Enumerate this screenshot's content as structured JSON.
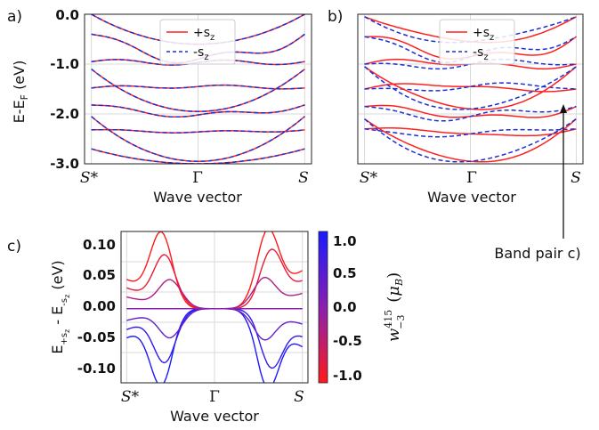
{
  "panel_labels": {
    "a": "a)",
    "b": "b)",
    "c": "c)"
  },
  "annotation": "Band pair c)",
  "chart_data": [
    {
      "id": "a",
      "type": "line",
      "xlabel": "Wave vector",
      "ylabel": "E-E_F (eV)",
      "ylim": [
        -3.0,
        0.0
      ],
      "xticks": [
        "S*",
        "Γ",
        "S"
      ],
      "yticks": [
        "0.0",
        "-1.0",
        "-2.0",
        "-3.0"
      ],
      "grid": true,
      "legend": {
        "placement": "top-center",
        "entries": [
          "+s_z",
          "-s_z"
        ]
      },
      "series": [
        {
          "name": "+s_z",
          "color": "#ff2020"
        },
        {
          "name": "-s_z",
          "color": "#1a2fd6"
        }
      ],
      "bands": [
        {
          "edge": 0.0,
          "center": -0.6,
          "wiggle": 0.0
        },
        {
          "edge": -0.4,
          "center": -0.9,
          "wiggle": 0.1
        },
        {
          "edge": -0.95,
          "center": -0.97,
          "wiggle": 0.05
        },
        {
          "edge": -1.48,
          "center": -1.45,
          "wiggle": 0.03
        },
        {
          "edge": -1.1,
          "center": -1.95,
          "wiggle": 0.0
        },
        {
          "edge": -1.82,
          "center": -2.02,
          "wiggle": 0.05
        },
        {
          "edge": -2.32,
          "center": -2.36,
          "wiggle": 0.02
        },
        {
          "edge": -2.05,
          "center": -2.95,
          "wiggle": 0.0
        },
        {
          "edge": -2.7,
          "center": -3.0,
          "wiggle": 0.0
        }
      ]
    },
    {
      "id": "b",
      "type": "line",
      "xlabel": "Wave vector",
      "xticks": [
        "S*",
        "Γ",
        "S"
      ],
      "grid": true,
      "legend": {
        "placement": "top-center",
        "entries": [
          "+s_z",
          "-s_z"
        ]
      },
      "series": [
        {
          "name": "+s_z",
          "color": "#ff2020"
        },
        {
          "name": "-s_z",
          "color": "#1a2fd6"
        }
      ],
      "bands": [
        {
          "edge": -0.05,
          "center": -0.55,
          "wiggle": 0.0
        },
        {
          "edge": -0.45,
          "center": -0.85,
          "wiggle": 0.1
        },
        {
          "edge": -1.0,
          "center": -1.0,
          "wiggle": 0.05
        },
        {
          "edge": -1.5,
          "center": -1.45,
          "wiggle": 0.03
        },
        {
          "edge": -1.05,
          "center": -1.9,
          "wiggle": 0.0
        },
        {
          "edge": -1.85,
          "center": -2.05,
          "wiggle": 0.06
        },
        {
          "edge": -2.3,
          "center": -2.4,
          "wiggle": 0.02
        },
        {
          "edge": -2.1,
          "center": -2.95,
          "wiggle": 0.0
        }
      ]
    },
    {
      "id": "c",
      "type": "line",
      "xlabel": "Wave vector",
      "ylabel": "E_{+s_z} - E_{-s_z} (eV)",
      "ylim": [
        -0.12,
        0.125
      ],
      "xticks": [
        "S*",
        "Γ",
        "S"
      ],
      "yticks": [
        "0.10",
        "0.05",
        "0.00",
        "-0.05",
        "-0.10"
      ],
      "grid": true,
      "colorbar": {
        "label": "w_{-3}^{415} (μ_B)",
        "range": [
          -1.0,
          1.0
        ],
        "ticks": [
          "1.0",
          "0.5",
          "0.0",
          "-0.5",
          "-1.0"
        ]
      },
      "series": [
        {
          "amp": 0.111,
          "peak": 0.2,
          "w": -1.0,
          "right_amp": -0.111,
          "right_peak": 0.8,
          "right_w": 1.0
        },
        {
          "amp": 0.08,
          "peak": 0.22,
          "w": -0.8,
          "right_amp": -0.08,
          "right_peak": 0.82,
          "right_w": 0.8
        },
        {
          "amp": 0.045,
          "peak": 0.25,
          "w": -0.3,
          "right_amp": -0.045,
          "right_peak": 0.78,
          "right_w": 0.3
        },
        {
          "amp": 0.0,
          "peak": 0.25,
          "w": 0.0,
          "right_amp": 0.0,
          "right_peak": 0.78,
          "right_w": 0.0
        }
      ]
    }
  ]
}
